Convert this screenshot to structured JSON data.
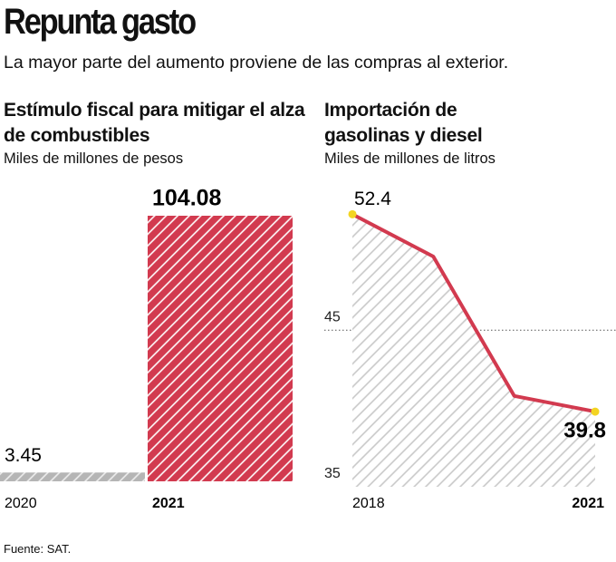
{
  "header": {
    "title": "Repunta gasto",
    "subtitle": "La mayor parte del aumento proviene de las compras al exterior."
  },
  "source": "Fuente: SAT.",
  "chart_data": [
    {
      "type": "bar",
      "title": "Estímulo fiscal para mitigar el alza de combustibles",
      "subtitle": "Miles de millones de pesos",
      "categories": [
        "2020",
        "2021"
      ],
      "values": [
        3.45,
        104.08
      ],
      "colors": [
        "#b5b5b5",
        "#d23a4f"
      ]
    },
    {
      "type": "line",
      "title": "Importación de gasolinas y diesel",
      "subtitle": "Miles de millones de litros",
      "categories": [
        "2018",
        null,
        null,
        "2021"
      ],
      "values": [
        52.4,
        49.7,
        40.8,
        39.8
      ],
      "value_labels": [
        "52.4",
        null,
        null,
        "39.8"
      ],
      "color": "#d23a4f",
      "marker_color": "#f3d422",
      "ylim": [
        35,
        53
      ],
      "yticks": [
        35,
        45
      ],
      "grid": true
    }
  ]
}
